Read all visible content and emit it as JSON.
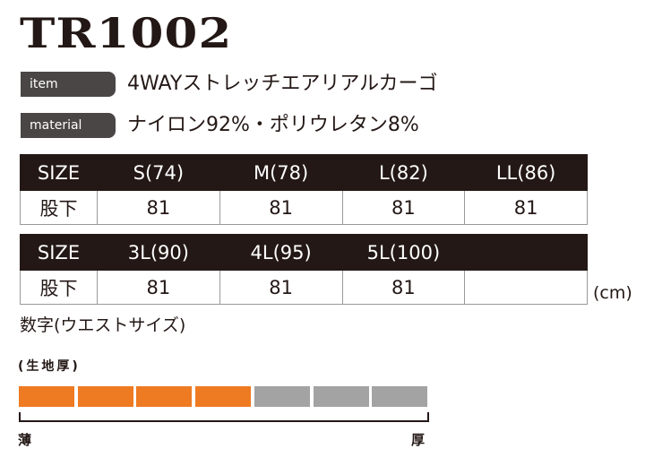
{
  "title": "TR1002",
  "item": {
    "label": "item",
    "value": "4WAYストレッチエアリアルカーゴ"
  },
  "material": {
    "label": "material",
    "value": "ナイロン92%・ポリウレタン8%"
  },
  "table1": {
    "header": [
      "SIZE",
      "S(74)",
      "M(78)",
      "L(82)",
      "LL(86)"
    ],
    "row": [
      "股下",
      "81",
      "81",
      "81",
      "81"
    ]
  },
  "table2": {
    "header": [
      "SIZE",
      "3L(90)",
      "4L(95)",
      "5L(100)",
      ""
    ],
    "row": [
      "股下",
      "81",
      "81",
      "81",
      ""
    ]
  },
  "unit": "(cm)",
  "note": "数字(ウエストサイズ)",
  "thickness": {
    "label": "(生地厚)",
    "level": 4,
    "max": 7,
    "min_label": "薄",
    "max_label": "厚",
    "colors": {
      "on": "#ee7a22",
      "off": "#a3a3a3"
    }
  }
}
